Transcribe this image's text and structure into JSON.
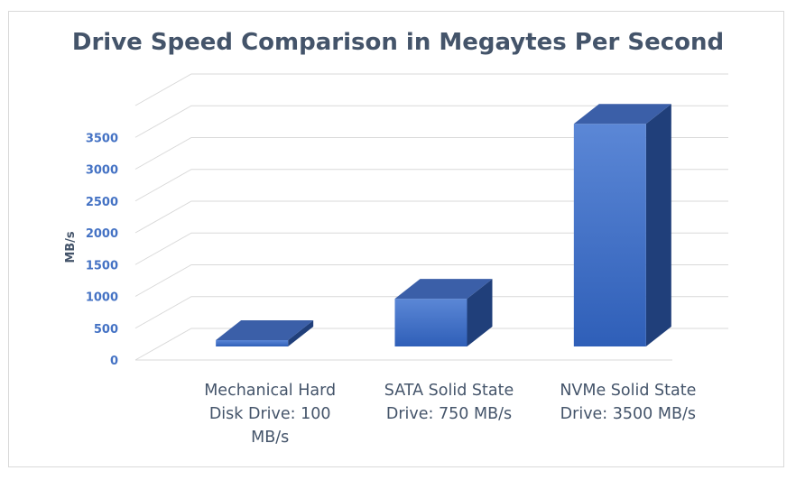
{
  "chart_data": {
    "type": "bar",
    "title": "Drive Speed Comparison in Megaytes Per Second",
    "xlabel": "",
    "ylabel": "MB/s",
    "categories": [
      [
        "Mechanical Hard",
        "Disk Drive: 100",
        "MB/s"
      ],
      [
        "SATA Solid State",
        "Drive: 750 MB/s"
      ],
      [
        "NVMe Solid State",
        "Drive: 3500 MB/s"
      ]
    ],
    "values": [
      100,
      750,
      3500
    ],
    "yticks": [
      "0",
      "500",
      "1000",
      "1500",
      "2000",
      "2500",
      "3000",
      "3500"
    ],
    "ylim": [
      0,
      4000
    ],
    "grid": true,
    "style": "3d-column",
    "colors": {
      "bar_front_top": "#5b87d6",
      "bar_front_bottom": "#2f5fb8",
      "bar_side": "#203f7a",
      "bar_top": "#3b5fa8",
      "grid": "#d9d9d9",
      "title": "#44546a",
      "tick": "#4472c4"
    }
  }
}
